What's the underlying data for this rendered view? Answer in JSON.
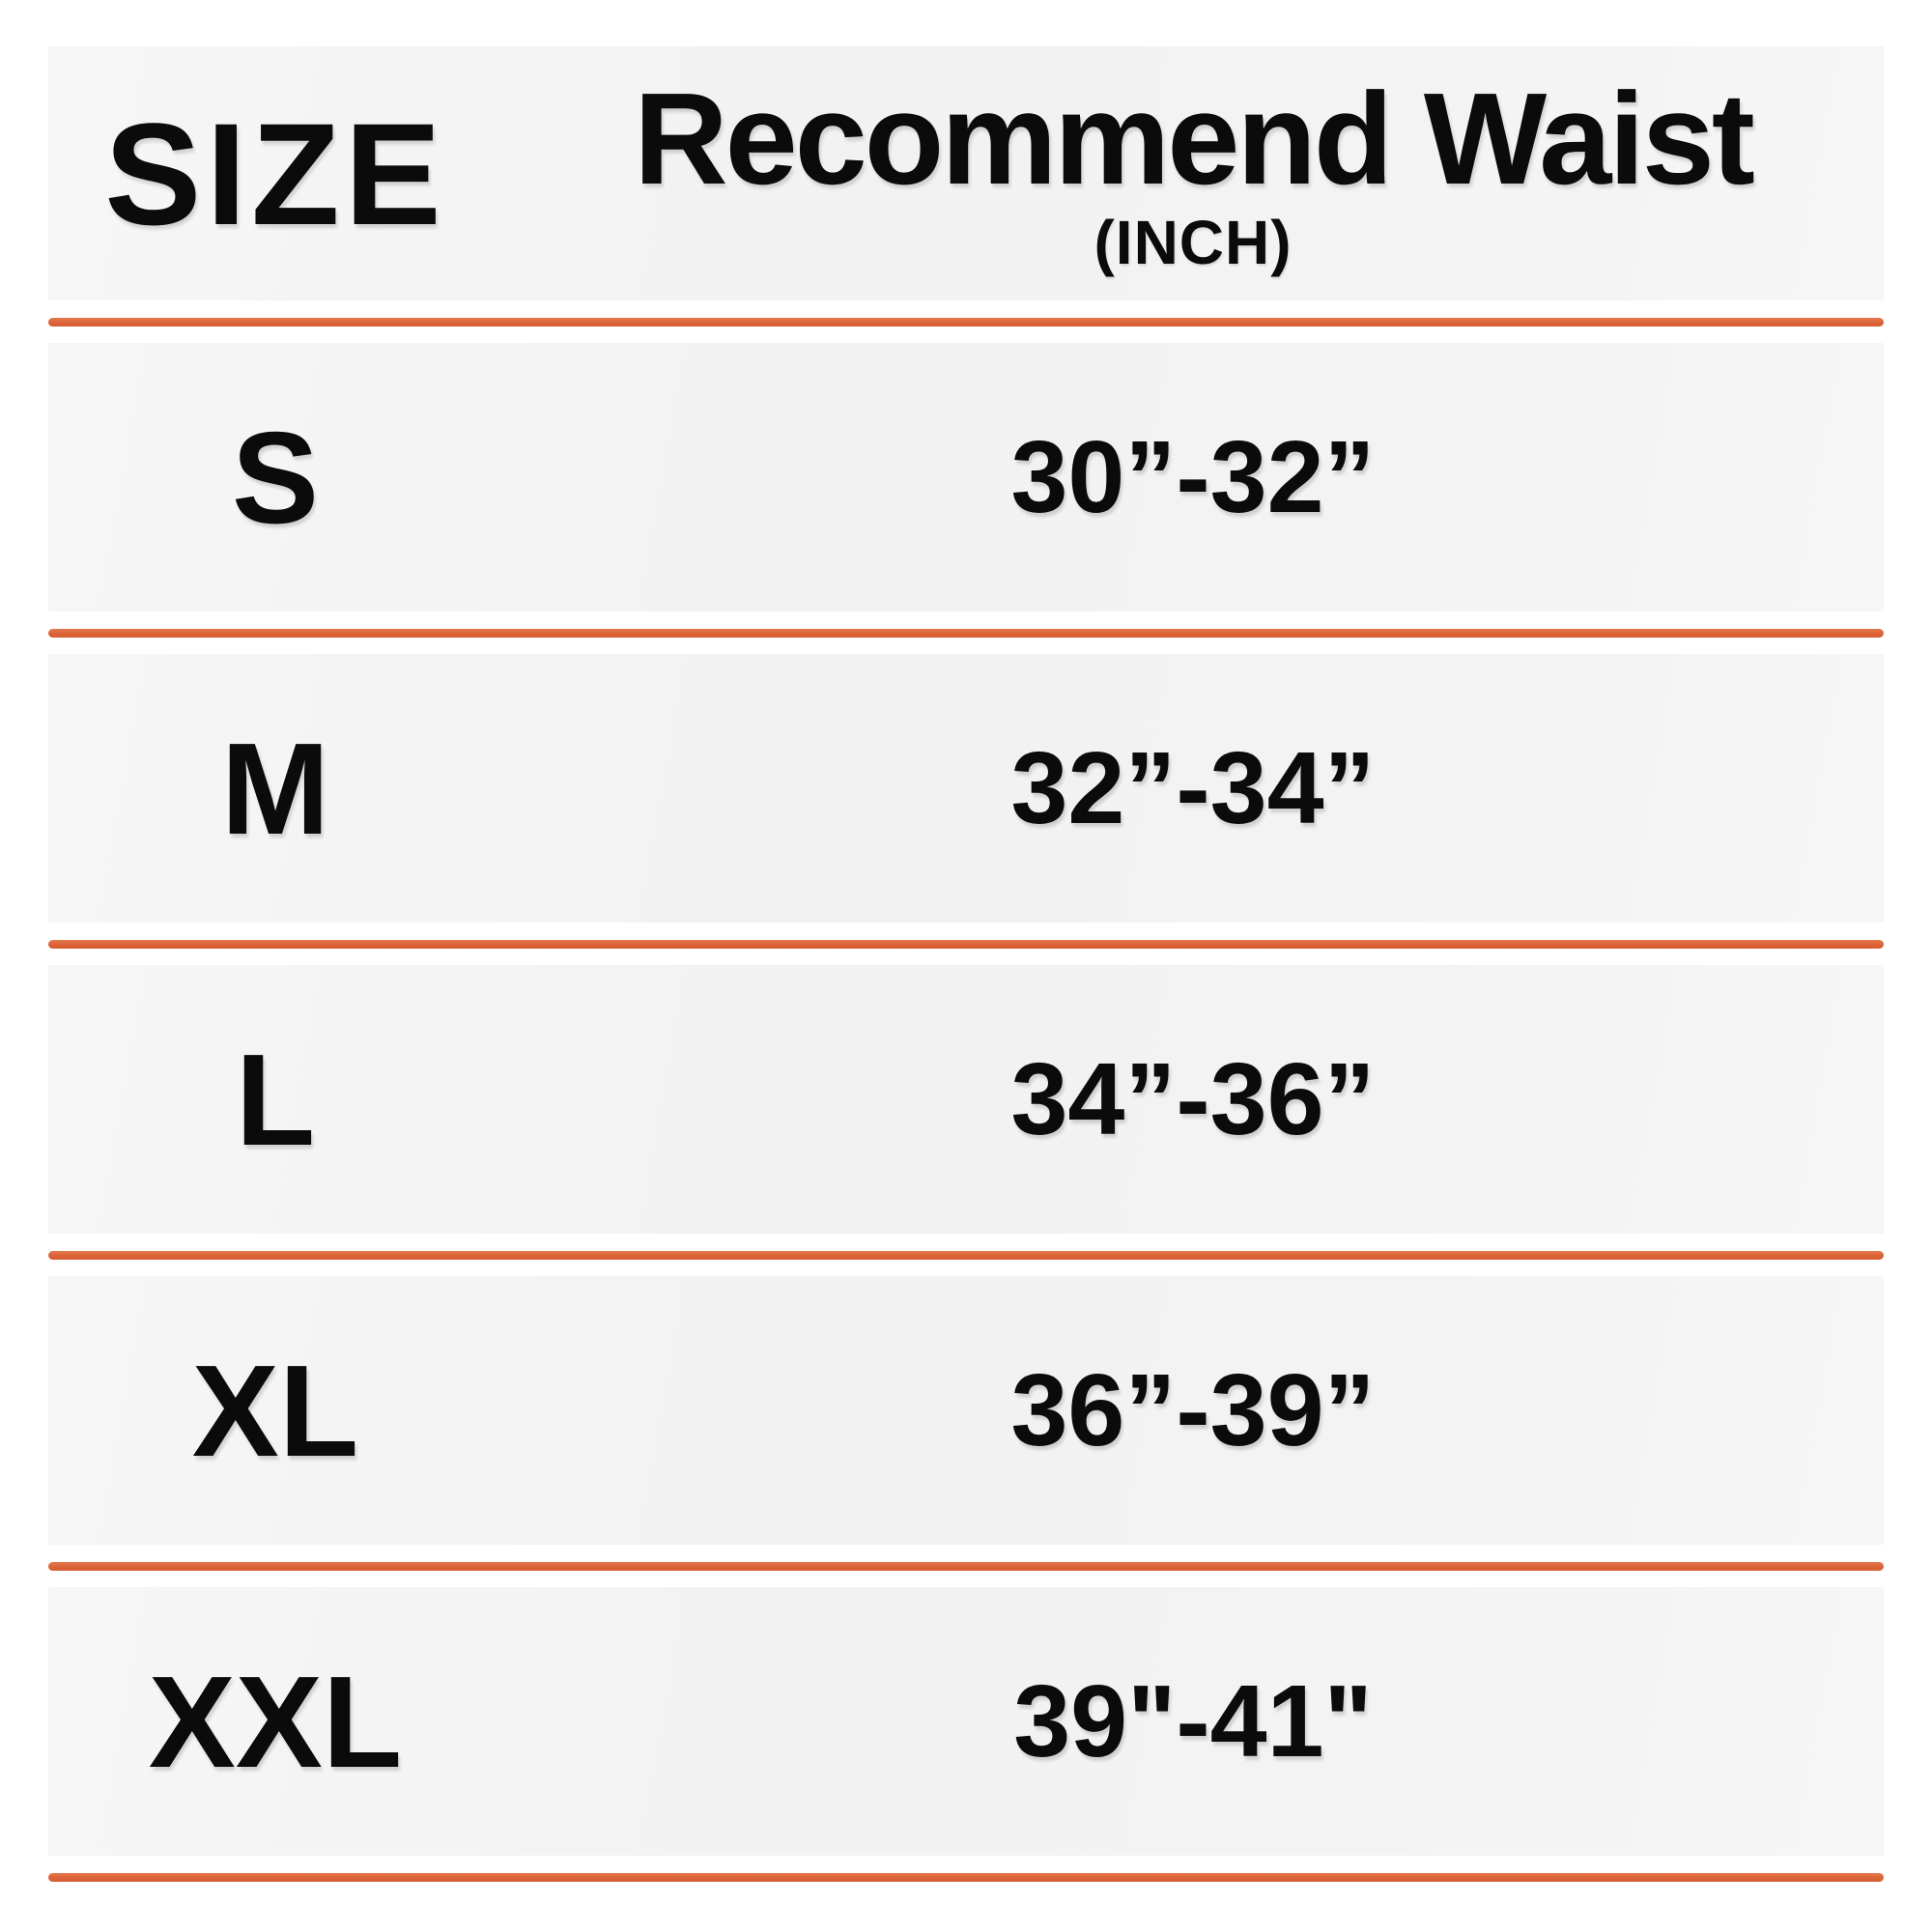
{
  "table": {
    "header": {
      "size_col": "SIZE",
      "waist_col": "Recommend Waist",
      "waist_col_sub": "(INCH)"
    },
    "rows": [
      {
        "size": "S",
        "waist": "30”-32”"
      },
      {
        "size": "M",
        "waist": "32”-34”"
      },
      {
        "size": "L",
        "waist": "34”-36”"
      },
      {
        "size": "XL",
        "waist": "36”-39”"
      },
      {
        "size": "XXL",
        "waist": "39\"-41\""
      }
    ]
  },
  "colors": {
    "divider_orange": "#DC6338",
    "row_background": "#F3F3F3",
    "text": "#0B0B0B",
    "page_background": "#FFFFFF"
  },
  "chart_data": {
    "type": "table",
    "title": "Size chart — recommended waist",
    "columns": [
      "SIZE",
      "Recommend Waist (INCH)"
    ],
    "rows": [
      [
        "S",
        "30”-32”"
      ],
      [
        "M",
        "32”-34”"
      ],
      [
        "L",
        "34”-36”"
      ],
      [
        "XL",
        "36”-39”"
      ],
      [
        "XXL",
        "39\"-41\""
      ]
    ],
    "layout_hints": {
      "grid": "horizontal orange dividers between rows",
      "row_background": "light gray",
      "divider_color": "#DC6338"
    }
  }
}
